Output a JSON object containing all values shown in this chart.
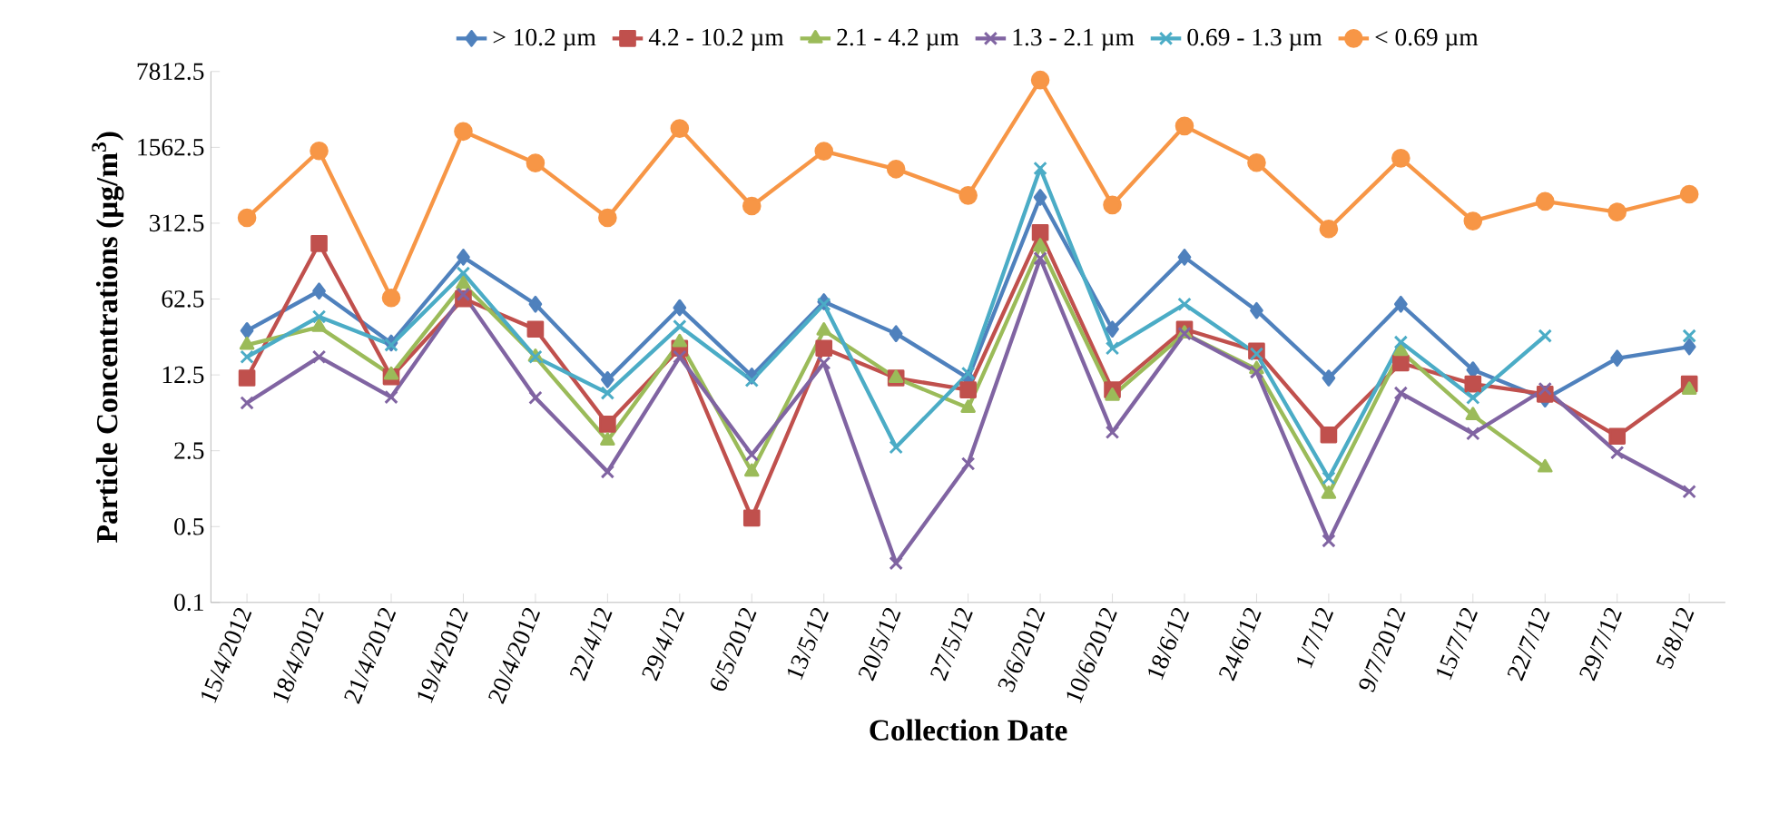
{
  "chart_data": {
    "type": "line",
    "xlabel": "Collection Date",
    "ylabel": "Particle Concentrations (µg/m$^{3}$)",
    "categories": [
      "15/4/2012",
      "18/4/2012",
      "21/4/2012",
      "19/4/2012",
      "20/4/2012",
      "22/4/12",
      "29/4/12",
      "6/5/2012",
      "13/5/12",
      "20/5/12",
      "27/5/12",
      "3/6/2012",
      "10/6/2012",
      "18/6/12",
      "24/6/12",
      "1/7/12",
      "9/7/2012",
      "15/7/12",
      "22/7/12",
      "29/7/12",
      "5/8/12"
    ],
    "series": [
      {
        "name": "> 10.2 µm",
        "color": "#4f81bd",
        "marker": "diamond",
        "values": [
          32,
          74,
          24.6,
          152,
          56,
          11.3,
          52,
          12.2,
          59,
          30,
          11.7,
          541,
          33,
          152,
          49,
          11.7,
          56,
          13.9,
          7.5,
          17.8,
          22.7
        ]
      },
      {
        "name": "4.2 - 10.2 µm",
        "color": "#c0504d",
        "marker": "square",
        "values": [
          11.7,
          203,
          12,
          63,
          33,
          4.4,
          22,
          0.6,
          22,
          11.7,
          9.1,
          256,
          9.1,
          33,
          20.7,
          3.5,
          16.1,
          10.3,
          8.3,
          3.4,
          10.3
        ]
      },
      {
        "name": "2.1 - 4.2 µm",
        "color": "#9bbb59",
        "marker": "triangle",
        "values": [
          23.6,
          34.5,
          12.5,
          86,
          18.3,
          3.1,
          25,
          1.6,
          32,
          11.7,
          6.2,
          191,
          8,
          30,
          14.1,
          1.0,
          20.7,
          5.3,
          1.75,
          null,
          9.1
        ]
      },
      {
        "name": "1.3 - 2.1 µm",
        "color": "#8064a2",
        "marker": "cross",
        "values": [
          6.9,
          18.3,
          7.8,
          69,
          7.7,
          1.6,
          18.3,
          2.3,
          16.1,
          0.23,
          1.9,
          148,
          3.7,
          30,
          13.3,
          0.37,
          8.5,
          3.6,
          9.3,
          2.4,
          1.05
        ]
      },
      {
        "name": "0.69 - 1.3 µm",
        "color": "#4bacc6",
        "marker": "cross",
        "values": [
          18.3,
          43,
          23.6,
          108,
          18.3,
          8.5,
          35,
          11.1,
          56,
          2.7,
          12.9,
          1000,
          22,
          56,
          19.5,
          1.4,
          25,
          7.7,
          28.6,
          null,
          28.6
        ]
      },
      {
        "name": "< 0.69 µm",
        "color": "#f79646",
        "marker": "circle",
        "values": [
          350,
          1450,
          64,
          2190,
          1120,
          350,
          2330,
          450,
          1440,
          985,
          563,
          6520,
          460,
          2456,
          1130,
          277,
          1240,
          327,
          497,
          396,
          578
        ]
      }
    ],
    "log": "y",
    "ylim": [
      0.1,
      7812.5
    ],
    "yticks": [
      0.1,
      0.5,
      2.5,
      12.5,
      62.5,
      312.5,
      1562.5,
      7812.5
    ],
    "legend": "top",
    "grid": false,
    "line_style": "solid"
  }
}
